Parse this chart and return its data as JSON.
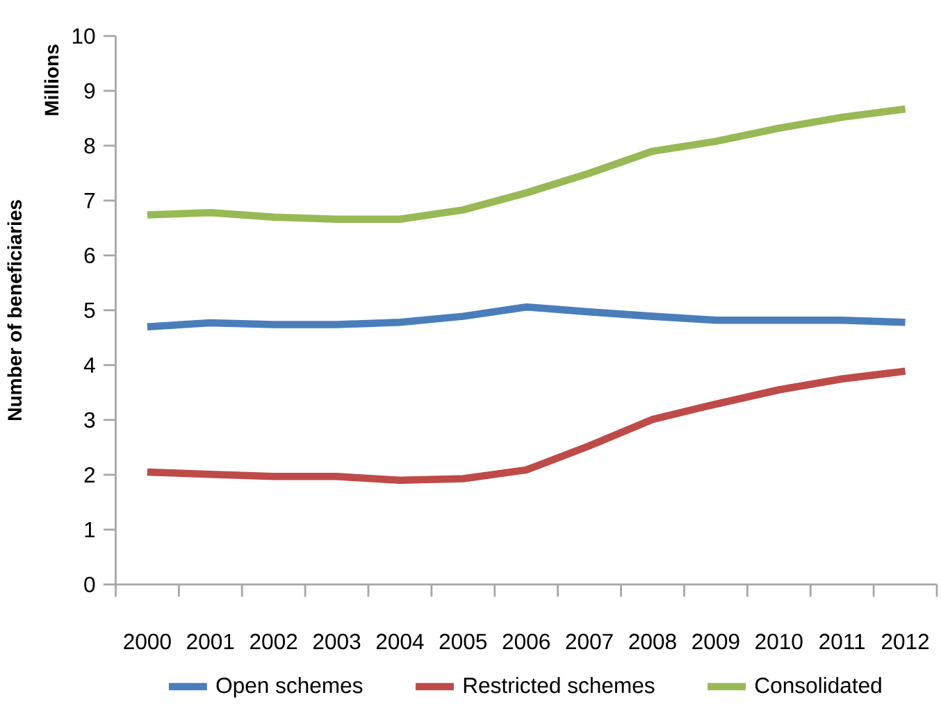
{
  "chart_data": {
    "type": "line",
    "ylabel": "Number of beneficiaries",
    "annotations": [
      "Millions"
    ],
    "categories": [
      "2000",
      "2001",
      "2002",
      "2003",
      "2004",
      "2005",
      "2006",
      "2007",
      "2008",
      "2009",
      "2010",
      "2011",
      "2012"
    ],
    "series": [
      {
        "name": "Open schemes",
        "color": "#4a7ebb",
        "values": [
          4.7,
          4.77,
          4.74,
          4.74,
          4.78,
          4.89,
          5.06,
          4.97,
          4.89,
          4.82,
          4.82,
          4.82,
          4.78
        ]
      },
      {
        "name": "Restricted schemes",
        "color": "#be4b48",
        "values": [
          2.05,
          2.01,
          1.97,
          1.97,
          1.9,
          1.93,
          2.09,
          2.53,
          3.01,
          3.29,
          3.55,
          3.75,
          3.89
        ]
      },
      {
        "name": "Consolidated",
        "color": "#98b954",
        "values": [
          6.74,
          6.78,
          6.7,
          6.66,
          6.66,
          6.83,
          7.14,
          7.5,
          7.9,
          8.08,
          8.32,
          8.52,
          8.67
        ]
      }
    ],
    "ylim": [
      0,
      10
    ],
    "yticks": [
      0,
      1,
      2,
      3,
      4,
      5,
      6,
      7,
      8,
      9,
      10
    ],
    "legend": "bottom",
    "marker": "none",
    "line_style": "solid"
  }
}
